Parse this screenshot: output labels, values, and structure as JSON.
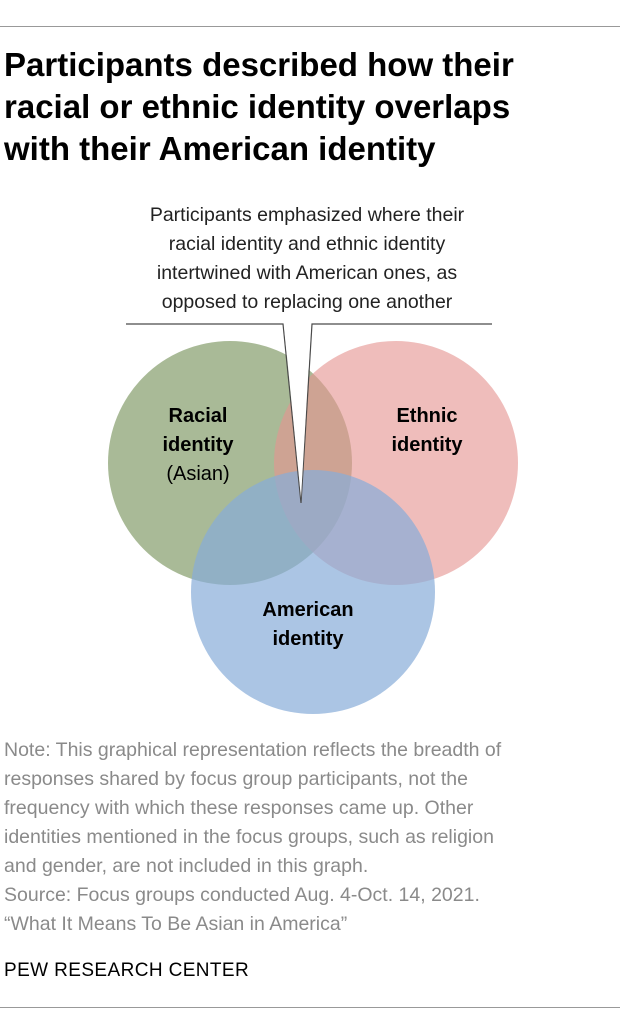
{
  "title": {
    "lines": [
      "Participants described how their",
      "racial or ethnic identity overlaps",
      "with their American identity"
    ]
  },
  "callout": {
    "lines": [
      "Participants emphasized where their",
      "racial identity and ethnic identity",
      "intertwined with American ones, as",
      "opposed to replacing one another"
    ]
  },
  "circles": {
    "racial": {
      "label": [
        "Racial",
        "identity"
      ],
      "sublabel": "(Asian)",
      "color": "#809a66"
    },
    "ethnic": {
      "label": [
        "Ethnic",
        "identity"
      ],
      "color": "#e59591"
    },
    "american": {
      "label": [
        "American",
        "identity"
      ],
      "color": "#87acd9"
    }
  },
  "note": {
    "lines": [
      "Note: This graphical representation reflects the breadth of",
      "responses shared by focus group participants, not the",
      "frequency with which these responses came up. Other",
      "identities mentioned in the focus groups, such as religion",
      "and gender, are not included in this graph.",
      "Source: Focus groups conducted Aug. 4-Oct. 14, 2021.",
      "“What It Means To Be Asian in America”"
    ]
  },
  "org": "PEW RESEARCH CENTER"
}
